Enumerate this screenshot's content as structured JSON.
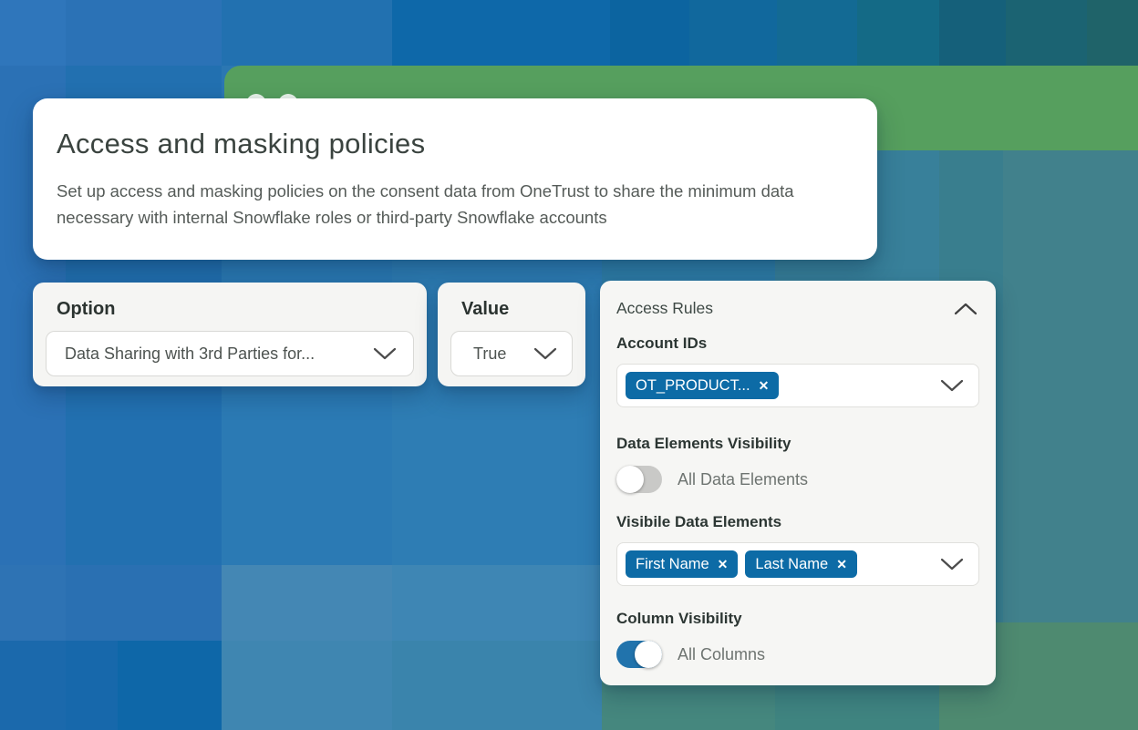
{
  "background": {
    "accent_band_color": "#569f5e",
    "tiles": [
      [
        0,
        0,
        72,
        72,
        "#2f76bb"
      ],
      [
        72,
        0,
        171,
        72,
        "#2b72b6"
      ],
      [
        243,
        0,
        187,
        72,
        "#2271b0"
      ],
      [
        430,
        0,
        239,
        72,
        "#0e68a9"
      ],
      [
        669,
        0,
        87,
        72,
        "#0c64a0"
      ],
      [
        756,
        0,
        96,
        72,
        "#11689d"
      ],
      [
        852,
        0,
        88,
        72,
        "#136a94"
      ],
      [
        940,
        0,
        90,
        72,
        "#146a86"
      ],
      [
        1030,
        0,
        73,
        72,
        "#15607a"
      ],
      [
        1103,
        0,
        89,
        72,
        "#1b6372"
      ],
      [
        1192,
        0,
        56,
        72,
        "#1f6369"
      ],
      [
        0,
        72,
        72,
        548,
        "#2b71b5"
      ],
      [
        0,
        620,
        72,
        83,
        "#2e73b4"
      ],
      [
        0,
        703,
        72,
        98,
        "#1b69ac"
      ],
      [
        72,
        72,
        171,
        548,
        "#2270b0"
      ],
      [
        72,
        620,
        171,
        83,
        "#2a70b2"
      ],
      [
        72,
        703,
        57,
        98,
        "#1768ab"
      ],
      [
        129,
        703,
        114,
        98,
        "#0e67a8"
      ],
      [
        243,
        72,
        187,
        93,
        "#2b77b2"
      ],
      [
        243,
        165,
        187,
        455,
        "#2b7ab4"
      ],
      [
        243,
        620,
        187,
        83,
        "#4487b4"
      ],
      [
        243,
        703,
        187,
        98,
        "#3f86b1"
      ],
      [
        430,
        165,
        230,
        455,
        "#2e7db4"
      ],
      [
        430,
        620,
        230,
        83,
        "#3e86b4"
      ],
      [
        430,
        703,
        230,
        98,
        "#3a84ac"
      ],
      [
        660,
        165,
        190,
        538,
        "#2f7ea8"
      ],
      [
        850,
        165,
        180,
        538,
        "#38809a"
      ],
      [
        660,
        703,
        190,
        98,
        "#45877e"
      ],
      [
        850,
        703,
        180,
        98,
        "#3f8480"
      ],
      [
        1030,
        165,
        70,
        518,
        "#397e8e"
      ],
      [
        1100,
        165,
        148,
        518,
        "#41818c"
      ],
      [
        1030,
        683,
        218,
        118,
        "#4e8a70"
      ]
    ]
  },
  "hero_card": {
    "title": "Access and masking policies",
    "description": "Set up access and masking policies on the consent data from OneTrust to share the minimum data necessary with internal Snowflake roles or third-party Snowflake accounts"
  },
  "filters": {
    "option": {
      "label": "Option",
      "selected_value": "Data Sharing with 3rd Parties for..."
    },
    "value": {
      "label": "Value",
      "selected_value": "True"
    }
  },
  "access_rules": {
    "title": "Access Rules",
    "account_ids": {
      "label": "Account IDs",
      "tags": [
        "OT_PRODUCT..."
      ]
    },
    "data_elements_visibility": {
      "label": "Data Elements Visibility",
      "toggle": {
        "state": "off",
        "label": "All Data Elements"
      }
    },
    "visible_data_elements": {
      "label": "Visibile Data Elements",
      "tags": [
        "First Name",
        "Last Name"
      ]
    },
    "column_visibility": {
      "label": "Column Visibility",
      "toggle": {
        "state": "on",
        "label": "All Columns"
      }
    }
  },
  "icons": {
    "remove": "✕"
  },
  "colors": {
    "tag_bg": "#0d6ba6",
    "toggle_on": "#2173ac",
    "toggle_off": "#c9c9c7",
    "hero_bg": "#ffffff",
    "card_bg": "#f5f5f3"
  }
}
